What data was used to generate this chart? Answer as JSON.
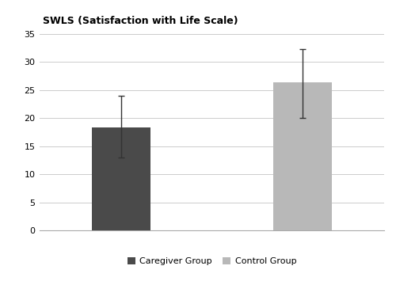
{
  "categories": [
    "Caregiver Group",
    "Control Group"
  ],
  "values": [
    18.3,
    26.4
  ],
  "errors_upper": [
    5.7,
    5.8
  ],
  "errors_lower": [
    5.3,
    6.4
  ],
  "bar_colors": [
    "#4a4a4a",
    "#b8b8b8"
  ],
  "bar_width": 0.32,
  "title": "SWLS (Satisfaction with Life Scale)",
  "title_fontsize": 9.0,
  "title_fontweight": "bold",
  "ylim": [
    0,
    35
  ],
  "yticks": [
    0,
    5,
    10,
    15,
    20,
    25,
    30,
    35
  ],
  "legend_labels": [
    "Caregiver Group",
    "Control Group"
  ],
  "legend_colors": [
    "#4a4a4a",
    "#b8b8b8"
  ],
  "grid_color": "#cccccc",
  "background_color": "#ffffff",
  "error_color": "#333333",
  "error_capsize": 3,
  "error_linewidth": 1.0,
  "x_positions": [
    1,
    2
  ],
  "xlim": [
    0.55,
    2.45
  ]
}
